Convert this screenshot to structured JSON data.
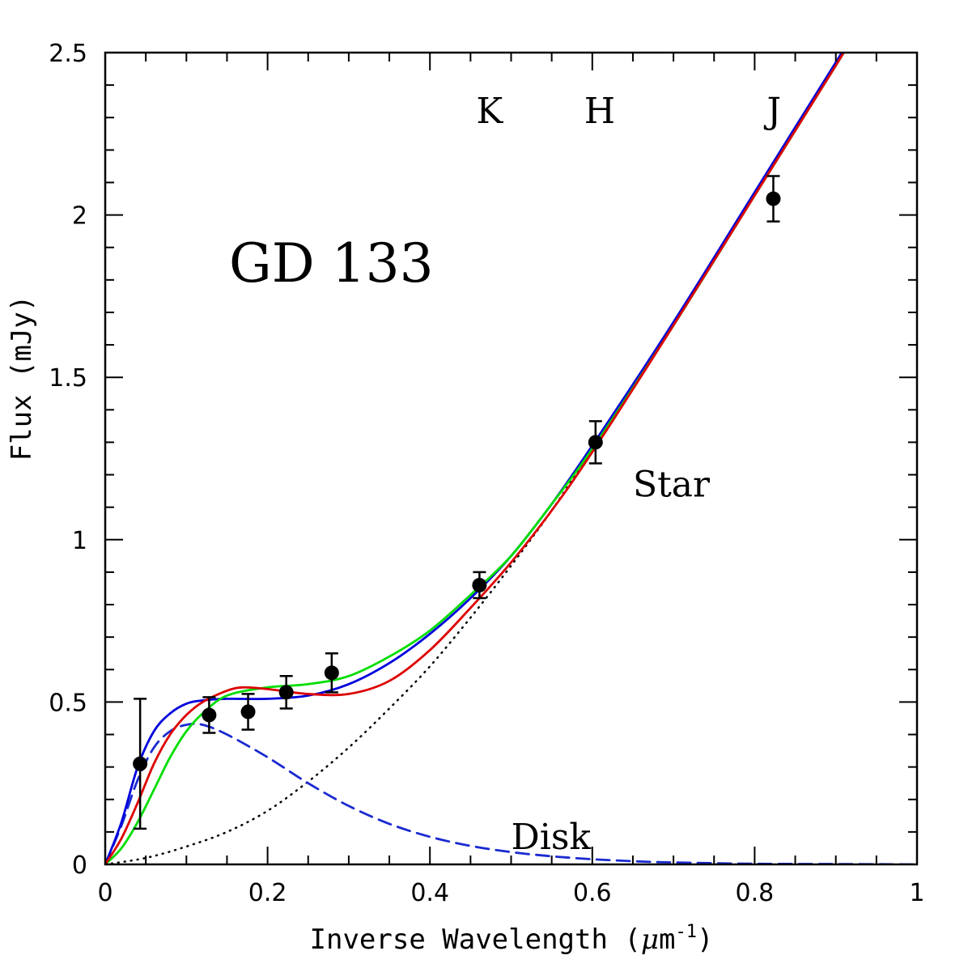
{
  "chart_data": {
    "type": "line",
    "title": "GD 133",
    "xlabel": "Inverse Wavelength (",
    "xlabel_mu": "μ",
    "xlabel_unit": "m",
    "xlabel_exp": "-1",
    "xlabel_close": ")",
    "ylabel": "Flux (mJy)",
    "xlim": [
      0,
      1
    ],
    "ylim": [
      0,
      2.5
    ],
    "x_ticks": [
      0,
      0.2,
      0.4,
      0.6,
      0.8,
      1
    ],
    "x_tick_labels": [
      "0",
      "0.2",
      "0.4",
      "0.6",
      "0.8",
      "1"
    ],
    "y_ticks": [
      0,
      0.5,
      1,
      1.5,
      2,
      2.5
    ],
    "y_tick_labels": [
      "0",
      "0.5",
      "1",
      "1.5",
      "2",
      "2.5"
    ],
    "band_labels": [
      {
        "text": "K",
        "x": 0.457,
        "y": 2.32
      },
      {
        "text": "H",
        "x": 0.59,
        "y": 2.32
      },
      {
        "text": "J",
        "x": 0.815,
        "y": 2.32
      }
    ],
    "annotations": [
      {
        "text": "Star",
        "x": 0.65,
        "y": 1.17
      },
      {
        "text": "Disk",
        "x": 0.5,
        "y": 0.085
      }
    ],
    "points": [
      {
        "x": 0.043,
        "y": 0.31,
        "err": 0.2
      },
      {
        "x": 0.128,
        "y": 0.46,
        "err": 0.055
      },
      {
        "x": 0.176,
        "y": 0.47,
        "err": 0.055
      },
      {
        "x": 0.223,
        "y": 0.53,
        "err": 0.05
      },
      {
        "x": 0.279,
        "y": 0.59,
        "err": 0.06
      },
      {
        "x": 0.461,
        "y": 0.86,
        "err": 0.04
      },
      {
        "x": 0.604,
        "y": 1.3,
        "err": 0.065
      },
      {
        "x": 0.823,
        "y": 2.05,
        "err": 0.07
      }
    ],
    "series": [
      {
        "style": "dotted",
        "color": "#000000",
        "x": [
          0,
          0.05,
          0.1,
          0.15,
          0.2,
          0.25,
          0.3,
          0.35,
          0.4,
          0.45,
          0.5,
          0.55,
          0.6,
          0.65,
          0.7
        ],
        "y": [
          0,
          0.02,
          0.055,
          0.1,
          0.165,
          0.255,
          0.36,
          0.48,
          0.61,
          0.76,
          0.92,
          1.09,
          1.28,
          1.47,
          1.67
        ]
      },
      {
        "style": "dashed",
        "color": "#1a2ad0",
        "x": [
          0,
          0.02,
          0.04,
          0.06,
          0.08,
          0.1,
          0.12,
          0.15,
          0.2,
          0.25,
          0.3,
          0.35,
          0.4,
          0.45,
          0.5,
          0.55,
          0.6,
          0.65,
          0.7,
          0.8,
          0.9,
          1.0
        ],
        "y": [
          0,
          0.12,
          0.26,
          0.36,
          0.41,
          0.43,
          0.43,
          0.4,
          0.33,
          0.25,
          0.18,
          0.125,
          0.085,
          0.057,
          0.038,
          0.025,
          0.016,
          0.01,
          0.006,
          0.002,
          0.001,
          0
        ]
      },
      {
        "style": "solid",
        "color": "#0000dd",
        "x": [
          0,
          0.02,
          0.04,
          0.06,
          0.08,
          0.1,
          0.12,
          0.15,
          0.2,
          0.25,
          0.3,
          0.35,
          0.4,
          0.45,
          0.5,
          0.55,
          0.6,
          0.7,
          0.8,
          0.9,
          0.94
        ],
        "y": [
          0,
          0.13,
          0.3,
          0.41,
          0.465,
          0.495,
          0.505,
          0.51,
          0.51,
          0.52,
          0.555,
          0.62,
          0.71,
          0.82,
          0.95,
          1.11,
          1.29,
          1.67,
          2.07,
          2.47,
          2.63
        ]
      },
      {
        "style": "solid",
        "color": "#00dd00",
        "x": [
          0,
          0.02,
          0.04,
          0.06,
          0.08,
          0.1,
          0.12,
          0.15,
          0.2,
          0.25,
          0.3,
          0.35,
          0.4,
          0.45,
          0.5,
          0.55,
          0.6,
          0.7,
          0.8,
          0.9,
          0.94
        ],
        "y": [
          0,
          0.05,
          0.13,
          0.23,
          0.33,
          0.41,
          0.465,
          0.52,
          0.545,
          0.555,
          0.58,
          0.64,
          0.72,
          0.83,
          0.95,
          1.11,
          1.28,
          1.66,
          2.06,
          2.46,
          2.63
        ]
      },
      {
        "style": "solid",
        "color": "#dd0000",
        "x": [
          0,
          0.02,
          0.04,
          0.06,
          0.08,
          0.1,
          0.12,
          0.15,
          0.17,
          0.2,
          0.25,
          0.3,
          0.35,
          0.4,
          0.45,
          0.5,
          0.55,
          0.6,
          0.7,
          0.8,
          0.9,
          0.94
        ],
        "y": [
          0,
          0.08,
          0.19,
          0.31,
          0.4,
          0.46,
          0.5,
          0.535,
          0.545,
          0.54,
          0.525,
          0.525,
          0.565,
          0.66,
          0.79,
          0.93,
          1.09,
          1.27,
          1.66,
          2.06,
          2.46,
          2.63
        ]
      }
    ]
  }
}
